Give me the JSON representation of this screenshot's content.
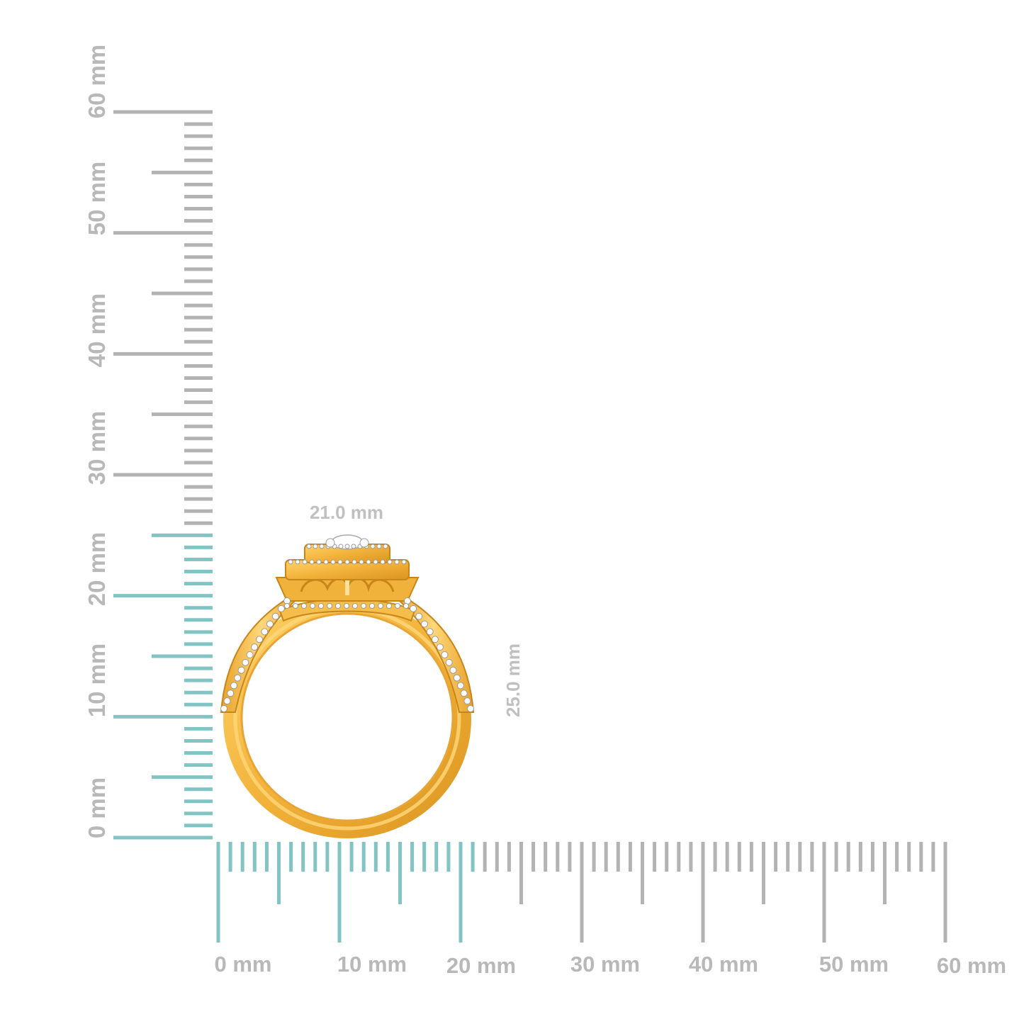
{
  "measurements": {
    "width_label": "21.0 mm",
    "height_label": "25.0 mm",
    "width_mm": 21.0,
    "height_mm": 25.0
  },
  "vertical_ruler": {
    "labels": [
      "0 mm",
      "10 mm",
      "20 mm",
      "30 mm",
      "40 mm",
      "50 mm",
      "60 mm"
    ]
  },
  "horizontal_ruler": {
    "labels": [
      "0 mm",
      "10 mm",
      "20 mm",
      "30 mm",
      "40 mm",
      "50 mm",
      "60 mm"
    ]
  },
  "colors": {
    "highlight": "#82c4c3",
    "tick": "#b3b3b3",
    "label": "#b8b8b8",
    "gold": "#f2b63c",
    "gold_dark": "#c8861a",
    "gold_light": "#ffd977",
    "diamond": "#ffffff"
  }
}
